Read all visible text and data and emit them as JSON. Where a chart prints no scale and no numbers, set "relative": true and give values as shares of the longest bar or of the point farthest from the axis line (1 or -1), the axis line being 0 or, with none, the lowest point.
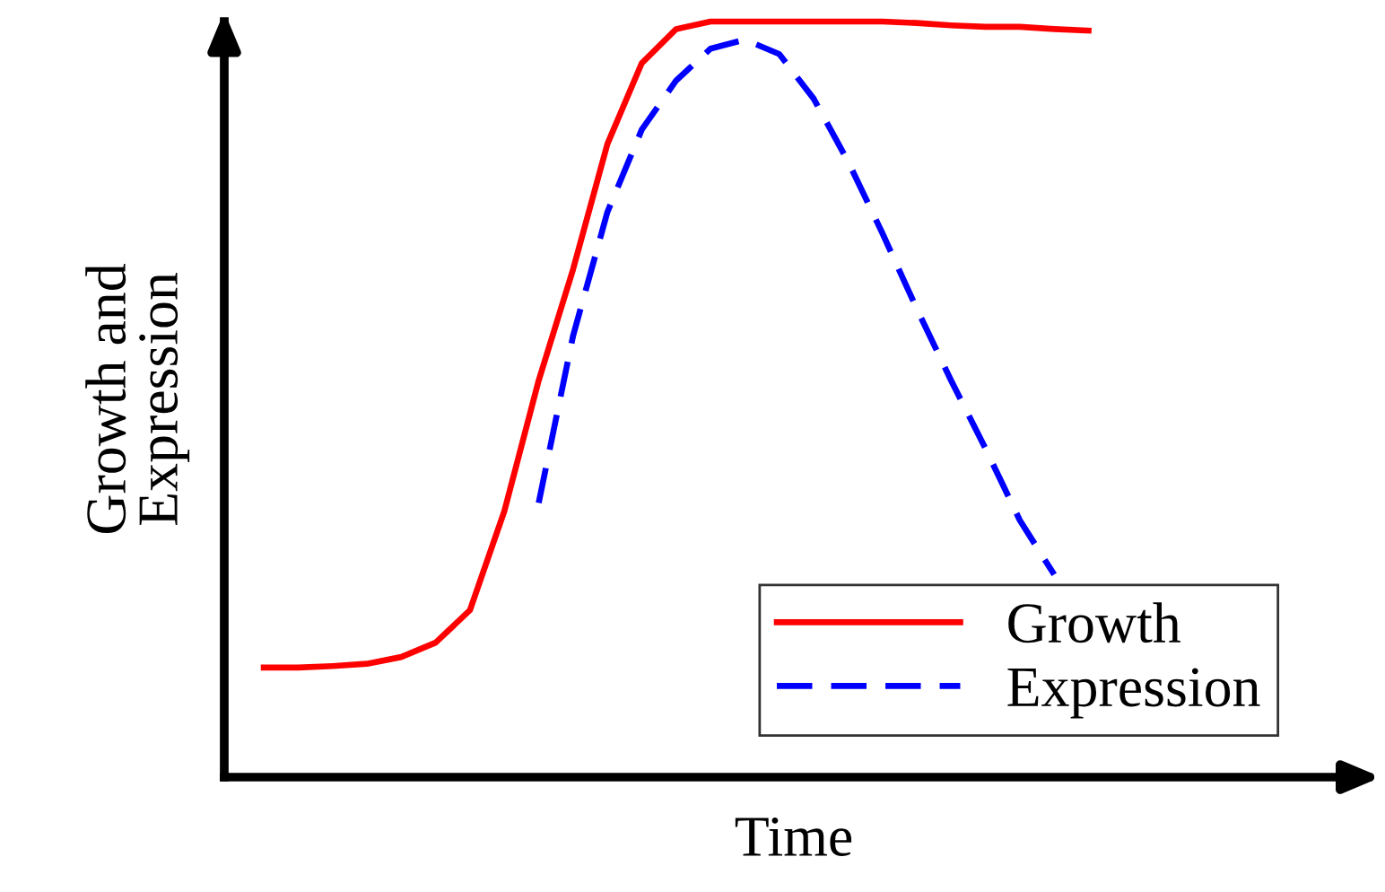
{
  "chart_data": {
    "type": "line",
    "relative": true,
    "xlabel": "Time",
    "ylabel": "Growth and\nExpression",
    "legend": "bottom right",
    "categories": [
      null,
      null,
      null,
      null,
      null,
      null,
      null,
      null,
      null,
      null,
      null,
      null,
      null,
      null,
      null,
      null,
      null,
      null,
      null,
      null,
      null,
      null,
      null,
      null,
      null
    ],
    "series": [
      {
        "name": "Growth",
        "color": "#ff0000",
        "line_style": "solid",
        "values": [
          0.145,
          0.145,
          0.147,
          0.15,
          0.159,
          0.178,
          0.221,
          0.352,
          0.525,
          0.672,
          0.838,
          0.945,
          0.99,
          1.0,
          1.0,
          1.0,
          1.0,
          1.0,
          1.0,
          0.998,
          0.995,
          0.993,
          0.993,
          0.99,
          0.988
        ]
      },
      {
        "name": "Expression",
        "color": "#0000ff",
        "line_style": "dashed",
        "values": [
          null,
          null,
          null,
          null,
          null,
          null,
          null,
          null,
          0.363,
          0.584,
          0.748,
          0.857,
          0.922,
          0.964,
          0.976,
          0.957,
          0.898,
          0.815,
          0.72,
          0.62,
          0.525,
          0.435,
          0.34,
          0.268,
          null
        ]
      }
    ]
  }
}
